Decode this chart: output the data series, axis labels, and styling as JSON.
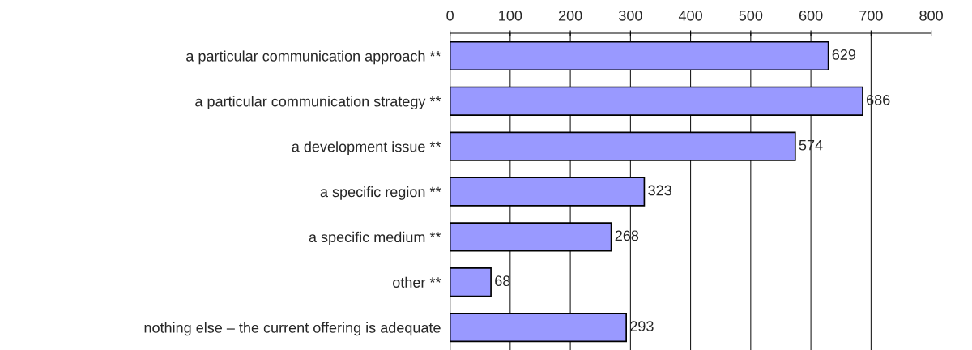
{
  "chart_data": {
    "type": "bar",
    "orientation": "horizontal",
    "categories": [
      "a particular communication approach **",
      "a particular communication strategy **",
      "a development issue **",
      "a specific region **",
      "a specific medium **",
      "other **",
      "nothing else – the current offering is adequate"
    ],
    "values": [
      629,
      686,
      574,
      323,
      268,
      68,
      293
    ],
    "color": "#9999ff",
    "xlim": [
      0,
      800
    ],
    "xticks": [
      0,
      100,
      200,
      300,
      400,
      500,
      600,
      700,
      800
    ],
    "grid": "x",
    "data_labels": true
  }
}
